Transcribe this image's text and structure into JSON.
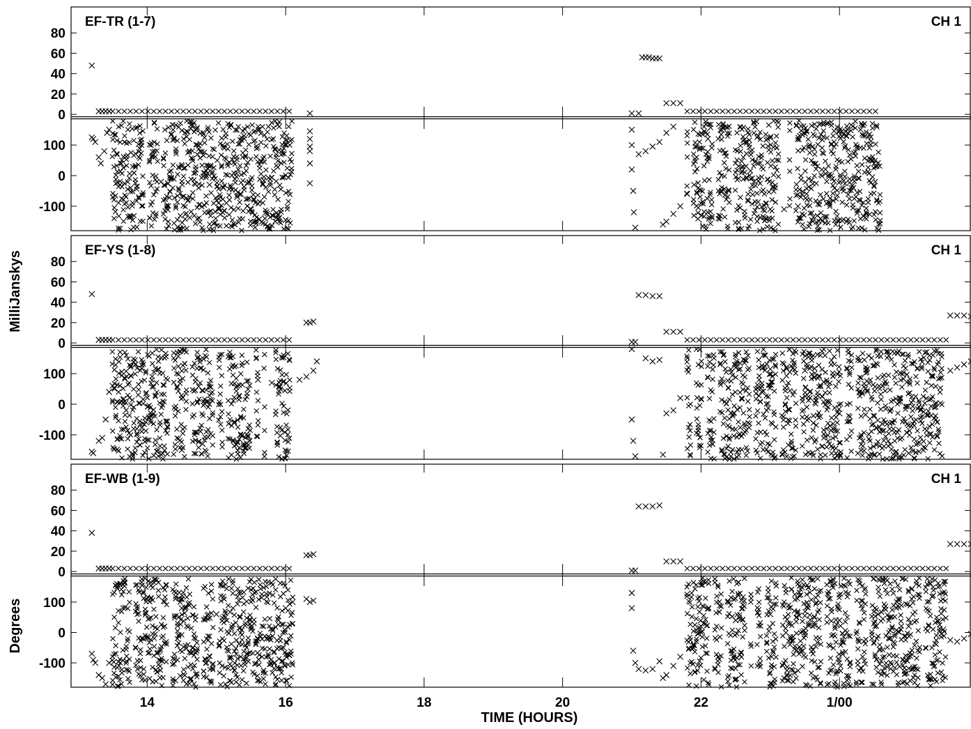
{
  "chart_data": {
    "type": "scatter",
    "xlabel": "TIME (HOURS)",
    "x_ticks": [
      {
        "hour": 14,
        "label": "14"
      },
      {
        "hour": 16,
        "label": "16"
      },
      {
        "hour": 18,
        "label": "18"
      },
      {
        "hour": 20,
        "label": "20"
      },
      {
        "hour": 22,
        "label": "22"
      },
      {
        "hour": 24,
        "label": "1/00"
      }
    ],
    "xlim": [
      12.9,
      25.9
    ],
    "amp_ylabel": "MilliJanskys",
    "phase_ylabel": "Degrees",
    "amp_ylim": [
      -2,
      100
    ],
    "amp_ticks": [
      0,
      20,
      40,
      60,
      80
    ],
    "phase_ylim": [
      -180,
      180
    ],
    "phase_ticks": [
      -100,
      0,
      100
    ],
    "marker": "x",
    "panels": [
      {
        "baseline": "EF-TR (1-7)",
        "channel": "CH 1",
        "amp_points": [
          [
            13.2,
            48
          ],
          [
            13.3,
            3
          ],
          [
            13.35,
            3
          ],
          [
            13.4,
            3
          ],
          [
            13.45,
            3
          ],
          [
            21.0,
            1
          ],
          [
            21.1,
            1
          ],
          [
            21.15,
            56
          ],
          [
            21.2,
            56
          ],
          [
            21.25,
            56
          ],
          [
            21.3,
            55
          ],
          [
            21.35,
            55
          ],
          [
            21.4,
            55
          ],
          [
            21.5,
            11
          ],
          [
            21.6,
            11
          ],
          [
            21.7,
            11
          ],
          [
            16.35,
            1
          ]
        ],
        "amp_zero_runs": [
          [
            13.5,
            16.1
          ],
          [
            21.8,
            24.6
          ]
        ],
        "phase_points": [
          [
            13.2,
            125
          ],
          [
            13.22,
            120
          ],
          [
            13.25,
            110
          ],
          [
            13.3,
            60
          ],
          [
            13.33,
            40
          ],
          [
            13.38,
            80
          ],
          [
            13.42,
            140
          ],
          [
            13.45,
            150
          ],
          [
            14.2,
            -20
          ],
          [
            14.3,
            -25
          ],
          [
            14.5,
            30
          ],
          [
            14.7,
            20
          ],
          [
            14.9,
            -30
          ],
          [
            15.1,
            -40
          ],
          [
            15.3,
            -70
          ],
          [
            15.5,
            -110
          ],
          [
            15.7,
            -140
          ],
          [
            15.9,
            -140
          ],
          [
            16.0,
            -145
          ],
          [
            16.35,
            145
          ],
          [
            16.35,
            120
          ],
          [
            16.35,
            95
          ],
          [
            16.35,
            80
          ],
          [
            16.35,
            40
          ],
          [
            16.35,
            -25
          ],
          [
            21.0,
            150
          ],
          [
            21.0,
            100
          ],
          [
            21.0,
            20
          ],
          [
            21.02,
            -50
          ],
          [
            21.03,
            -120
          ],
          [
            21.05,
            -170
          ],
          [
            21.1,
            70
          ],
          [
            21.2,
            80
          ],
          [
            21.3,
            95
          ],
          [
            21.4,
            110
          ],
          [
            21.5,
            140
          ],
          [
            21.6,
            160
          ],
          [
            21.45,
            -160
          ],
          [
            21.5,
            -150
          ],
          [
            21.6,
            -125
          ],
          [
            21.7,
            -100
          ],
          [
            21.8,
            -60
          ],
          [
            21.9,
            -30
          ],
          [
            22.1,
            120
          ],
          [
            22.3,
            150
          ],
          [
            23.0,
            -110
          ],
          [
            23.2,
            -110
          ],
          [
            23.4,
            -100
          ],
          [
            24.2,
            -40
          ]
        ],
        "phase_noise_runs": [
          [
            13.5,
            16.1
          ],
          [
            21.8,
            24.6
          ]
        ]
      },
      {
        "baseline": "EF-YS (1-8)",
        "channel": "CH 1",
        "amp_points": [
          [
            13.2,
            48
          ],
          [
            13.3,
            3
          ],
          [
            13.35,
            3
          ],
          [
            13.4,
            3
          ],
          [
            13.45,
            3
          ],
          [
            16.3,
            20
          ],
          [
            16.35,
            20
          ],
          [
            16.4,
            21
          ],
          [
            21.0,
            1
          ],
          [
            21.05,
            1
          ],
          [
            21.1,
            47
          ],
          [
            21.2,
            47
          ],
          [
            21.3,
            46
          ],
          [
            21.4,
            46
          ],
          [
            21.5,
            11
          ],
          [
            21.6,
            11
          ],
          [
            21.7,
            11
          ],
          [
            25.6,
            27
          ],
          [
            25.7,
            27
          ],
          [
            25.8,
            27
          ],
          [
            25.9,
            26
          ]
        ],
        "amp_zero_runs": [
          [
            13.5,
            16.1
          ],
          [
            21.8,
            25.55
          ]
        ],
        "phase_points": [
          [
            13.2,
            -155
          ],
          [
            13.22,
            -160
          ],
          [
            13.3,
            -120
          ],
          [
            13.35,
            -110
          ],
          [
            13.4,
            -50
          ],
          [
            13.45,
            40
          ],
          [
            13.5,
            60
          ],
          [
            14.5,
            -150
          ],
          [
            14.8,
            -130
          ],
          [
            15.3,
            60
          ],
          [
            15.6,
            80
          ],
          [
            15.8,
            70
          ],
          [
            16.2,
            80
          ],
          [
            16.3,
            90
          ],
          [
            16.4,
            110
          ],
          [
            16.45,
            140
          ],
          [
            21.0,
            180
          ],
          [
            21.0,
            -50
          ],
          [
            21.02,
            -120
          ],
          [
            21.05,
            -170
          ],
          [
            21.2,
            150
          ],
          [
            21.3,
            140
          ],
          [
            21.4,
            145
          ],
          [
            21.45,
            -165
          ],
          [
            21.5,
            -30
          ],
          [
            21.6,
            -20
          ],
          [
            21.7,
            20
          ],
          [
            22.5,
            120
          ],
          [
            23.0,
            115
          ],
          [
            23.5,
            110
          ],
          [
            24.0,
            -30
          ],
          [
            25.0,
            -160
          ],
          [
            25.6,
            110
          ],
          [
            25.7,
            120
          ],
          [
            25.8,
            130
          ],
          [
            25.9,
            140
          ]
        ],
        "phase_noise_runs": [
          [
            13.5,
            16.1
          ],
          [
            21.8,
            25.55
          ]
        ]
      },
      {
        "baseline": "EF-WB (1-9)",
        "channel": "CH 1",
        "amp_points": [
          [
            13.2,
            38
          ],
          [
            13.3,
            3
          ],
          [
            13.35,
            3
          ],
          [
            13.4,
            3
          ],
          [
            13.45,
            3
          ],
          [
            16.3,
            16
          ],
          [
            16.35,
            16
          ],
          [
            16.4,
            17
          ],
          [
            21.0,
            1
          ],
          [
            21.05,
            1
          ],
          [
            21.1,
            64
          ],
          [
            21.2,
            64
          ],
          [
            21.3,
            64
          ],
          [
            21.4,
            65
          ],
          [
            21.5,
            10
          ],
          [
            21.6,
            10
          ],
          [
            21.7,
            10
          ],
          [
            25.6,
            27
          ],
          [
            25.7,
            27
          ],
          [
            25.8,
            27
          ],
          [
            25.9,
            27
          ]
        ],
        "amp_zero_runs": [
          [
            13.5,
            16.1
          ],
          [
            21.8,
            25.55
          ]
        ],
        "phase_points": [
          [
            13.2,
            -70
          ],
          [
            13.22,
            -90
          ],
          [
            13.25,
            -100
          ],
          [
            13.3,
            -140
          ],
          [
            13.35,
            -150
          ],
          [
            13.4,
            -170
          ],
          [
            13.45,
            -100
          ],
          [
            14.5,
            80
          ],
          [
            15.0,
            60
          ],
          [
            15.5,
            20
          ],
          [
            16.0,
            80
          ],
          [
            16.1,
            100
          ],
          [
            16.3,
            110
          ],
          [
            16.35,
            100
          ],
          [
            16.4,
            105
          ],
          [
            21.0,
            130
          ],
          [
            21.0,
            80
          ],
          [
            21.02,
            -60
          ],
          [
            21.05,
            -100
          ],
          [
            21.1,
            -120
          ],
          [
            21.2,
            -125
          ],
          [
            21.3,
            -120
          ],
          [
            21.4,
            -95
          ],
          [
            21.45,
            -150
          ],
          [
            21.5,
            -140
          ],
          [
            21.6,
            -110
          ],
          [
            21.7,
            -80
          ],
          [
            22.0,
            20
          ],
          [
            22.5,
            40
          ],
          [
            23.0,
            60
          ],
          [
            23.5,
            55
          ],
          [
            24.0,
            40
          ],
          [
            24.5,
            30
          ],
          [
            25.0,
            20
          ],
          [
            25.5,
            10
          ],
          [
            25.6,
            -25
          ],
          [
            25.7,
            -30
          ],
          [
            25.8,
            -20
          ],
          [
            25.9,
            -5
          ]
        ],
        "phase_noise_runs": [
          [
            13.5,
            16.1
          ],
          [
            21.8,
            25.55
          ]
        ]
      }
    ]
  }
}
